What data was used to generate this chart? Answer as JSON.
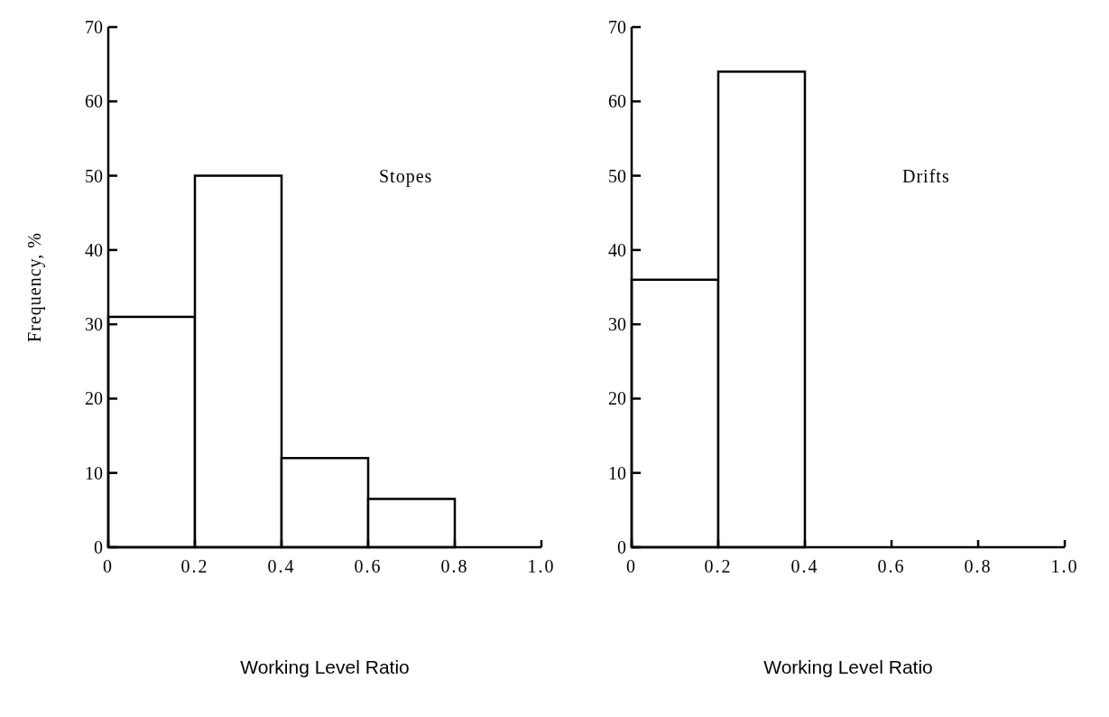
{
  "chart_data": [
    {
      "type": "histogram",
      "title": "Stopes",
      "xlabel": "Working Level Ratio",
      "ylabel": "Frequency, %",
      "bins": [
        0,
        0.2,
        0.4,
        0.6,
        0.8
      ],
      "values": [
        31,
        50,
        12,
        6.5
      ],
      "xlim": [
        0,
        1
      ],
      "xticks": [
        0,
        {
          "value": 0.2,
          "label": "0.2"
        },
        {
          "value": 0.4,
          "label": "0.4"
        },
        {
          "value": 0.6,
          "label": "0.6"
        },
        {
          "value": 0.8,
          "label": "0.8"
        },
        {
          "value": 1,
          "label": "1.0"
        }
      ],
      "ylim": [
        0,
        70
      ],
      "yticks": [
        0,
        10,
        20,
        30,
        40,
        50,
        60,
        70
      ],
      "grid": false
    },
    {
      "type": "histogram",
      "title": "Drifts",
      "xlabel": "Working Level Ratio",
      "bins": [
        0,
        0.2,
        0.4
      ],
      "values": [
        36,
        64
      ],
      "xlim": [
        0,
        1
      ],
      "xticks": [
        0,
        {
          "value": 0.2,
          "label": "0.2"
        },
        {
          "value": 0.4,
          "label": "0.4"
        },
        {
          "value": 0.6,
          "label": "0.6"
        },
        {
          "value": 0.8,
          "label": "0.8"
        },
        {
          "value": 1,
          "label": "1.0"
        }
      ],
      "ylim": [
        0,
        70
      ],
      "yticks": [
        0,
        10,
        20,
        30,
        40,
        50,
        60,
        70
      ],
      "grid": false
    }
  ]
}
